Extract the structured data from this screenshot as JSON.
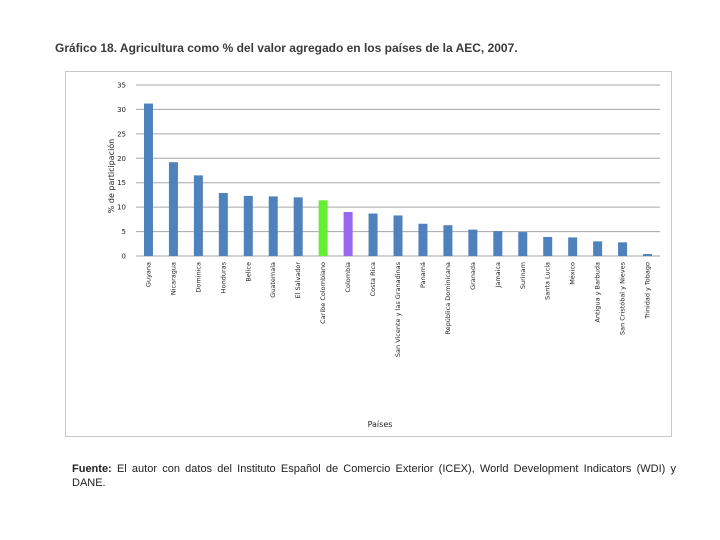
{
  "figure_title": "Gráfico 18. Agricultura como % del valor agregado en los países de la AEC, 2007.",
  "source_note": {
    "label": "Fuente:",
    "text": " El autor con datos del Instituto Español de Comercio Exterior (ICEX), World Development Indicators (WDI) y DANE."
  },
  "colors": {
    "default_bar": "#4f81bd",
    "highlight_green": "#66ee33",
    "highlight_purple": "#9966ee",
    "grid": "#a6a6a6"
  },
  "chart_data": {
    "type": "bar",
    "title": "",
    "xlabel": "Países",
    "ylabel": "% de participación",
    "ylim": [
      0,
      35
    ],
    "yticks": [
      0,
      5,
      10,
      15,
      20,
      25,
      30,
      35
    ],
    "grid": true,
    "legend": "none",
    "categories": [
      "Guyana",
      "Nicaragua",
      "Dominica",
      "Honduras",
      "Belice",
      "Guatemala",
      "El Salvador",
      "Caribe Colombiano",
      "Colombia",
      "Costa Rica",
      "San Vicente y las Granadinas",
      "Panamá",
      "República Dominicana",
      "Granada",
      "Jamaica",
      "Surinam",
      "Santa Lucía",
      "México",
      "Antigua y Barbuda",
      "San Cristóbal y Nieves",
      "Trinidad y Tobago"
    ],
    "values": [
      31.2,
      19.2,
      16.5,
      12.9,
      12.3,
      12.2,
      12.0,
      11.4,
      9.0,
      8.7,
      8.3,
      6.6,
      6.3,
      5.4,
      5.1,
      4.9,
      3.9,
      3.8,
      3.0,
      2.8,
      0.4
    ],
    "bar_colors": [
      "#4f81bd",
      "#4f81bd",
      "#4f81bd",
      "#4f81bd",
      "#4f81bd",
      "#4f81bd",
      "#4f81bd",
      "#66ee33",
      "#9966ee",
      "#4f81bd",
      "#4f81bd",
      "#4f81bd",
      "#4f81bd",
      "#4f81bd",
      "#4f81bd",
      "#4f81bd",
      "#4f81bd",
      "#4f81bd",
      "#4f81bd",
      "#4f81bd",
      "#4f81bd"
    ]
  }
}
